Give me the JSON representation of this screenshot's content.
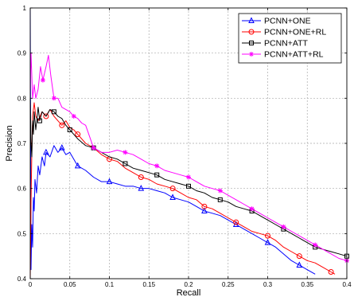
{
  "chart_data": {
    "type": "line",
    "title": "",
    "xlabel": "Recall",
    "ylabel": "Precision",
    "xlim": [
      0,
      0.4
    ],
    "ylim": [
      0.4,
      1
    ],
    "grid": true,
    "legend_position": "top-right",
    "xticks": [
      "0",
      "0.05",
      "0.1",
      "0.15",
      "0.2",
      "0.25",
      "0.3",
      "0.35",
      "0.4"
    ],
    "yticks": [
      "0.4",
      "0.5",
      "0.6",
      "0.7",
      "0.8",
      "0.9",
      "1"
    ],
    "series": [
      {
        "name": "PCNN+ONE",
        "color": "#0000ff",
        "marker": "triangle",
        "points": [
          [
            0.0,
            1.0
          ],
          [
            0.001,
            0.42
          ],
          [
            0.002,
            0.52
          ],
          [
            0.003,
            0.47
          ],
          [
            0.004,
            0.58
          ],
          [
            0.005,
            0.55
          ],
          [
            0.006,
            0.62
          ],
          [
            0.008,
            0.59
          ],
          [
            0.01,
            0.65
          ],
          [
            0.012,
            0.63
          ],
          [
            0.015,
            0.67
          ],
          [
            0.018,
            0.65
          ],
          [
            0.02,
            0.68
          ],
          [
            0.025,
            0.67
          ],
          [
            0.03,
            0.695
          ],
          [
            0.035,
            0.68
          ],
          [
            0.04,
            0.69
          ],
          [
            0.045,
            0.675
          ],
          [
            0.05,
            0.68
          ],
          [
            0.055,
            0.665
          ],
          [
            0.06,
            0.65
          ],
          [
            0.07,
            0.64
          ],
          [
            0.08,
            0.625
          ],
          [
            0.09,
            0.615
          ],
          [
            0.1,
            0.615
          ],
          [
            0.11,
            0.61
          ],
          [
            0.12,
            0.605
          ],
          [
            0.13,
            0.605
          ],
          [
            0.14,
            0.6
          ],
          [
            0.15,
            0.6
          ],
          [
            0.16,
            0.595
          ],
          [
            0.17,
            0.59
          ],
          [
            0.18,
            0.58
          ],
          [
            0.19,
            0.575
          ],
          [
            0.2,
            0.57
          ],
          [
            0.21,
            0.56
          ],
          [
            0.22,
            0.55
          ],
          [
            0.23,
            0.545
          ],
          [
            0.24,
            0.54
          ],
          [
            0.25,
            0.53
          ],
          [
            0.26,
            0.52
          ],
          [
            0.27,
            0.51
          ],
          [
            0.28,
            0.5
          ],
          [
            0.29,
            0.49
          ],
          [
            0.3,
            0.48
          ],
          [
            0.31,
            0.47
          ],
          [
            0.32,
            0.455
          ],
          [
            0.33,
            0.44
          ],
          [
            0.34,
            0.43
          ],
          [
            0.35,
            0.42
          ],
          [
            0.36,
            0.41
          ]
        ]
      },
      {
        "name": "PCNN+ONE+RL",
        "color": "#ff0000",
        "marker": "circle",
        "points": [
          [
            0.0,
            0.4
          ],
          [
            0.001,
            0.57
          ],
          [
            0.002,
            0.68
          ],
          [
            0.003,
            0.76
          ],
          [
            0.005,
            0.79
          ],
          [
            0.007,
            0.76
          ],
          [
            0.01,
            0.75
          ],
          [
            0.015,
            0.77
          ],
          [
            0.02,
            0.76
          ],
          [
            0.025,
            0.775
          ],
          [
            0.03,
            0.76
          ],
          [
            0.035,
            0.75
          ],
          [
            0.04,
            0.74
          ],
          [
            0.045,
            0.75
          ],
          [
            0.05,
            0.735
          ],
          [
            0.055,
            0.73
          ],
          [
            0.06,
            0.72
          ],
          [
            0.07,
            0.7
          ],
          [
            0.08,
            0.69
          ],
          [
            0.09,
            0.675
          ],
          [
            0.1,
            0.665
          ],
          [
            0.11,
            0.66
          ],
          [
            0.12,
            0.645
          ],
          [
            0.13,
            0.635
          ],
          [
            0.14,
            0.625
          ],
          [
            0.15,
            0.62
          ],
          [
            0.16,
            0.61
          ],
          [
            0.17,
            0.605
          ],
          [
            0.18,
            0.6
          ],
          [
            0.19,
            0.59
          ],
          [
            0.2,
            0.58
          ],
          [
            0.21,
            0.575
          ],
          [
            0.22,
            0.56
          ],
          [
            0.23,
            0.555
          ],
          [
            0.24,
            0.545
          ],
          [
            0.25,
            0.535
          ],
          [
            0.26,
            0.525
          ],
          [
            0.27,
            0.515
          ],
          [
            0.28,
            0.505
          ],
          [
            0.29,
            0.5
          ],
          [
            0.3,
            0.495
          ],
          [
            0.31,
            0.485
          ],
          [
            0.32,
            0.47
          ],
          [
            0.33,
            0.46
          ],
          [
            0.34,
            0.45
          ],
          [
            0.35,
            0.44
          ],
          [
            0.36,
            0.435
          ],
          [
            0.37,
            0.425
          ],
          [
            0.38,
            0.415
          ],
          [
            0.385,
            0.41
          ]
        ]
      },
      {
        "name": "PCNN+ATT",
        "color": "#000000",
        "marker": "square",
        "points": [
          [
            0.0,
            0.8
          ],
          [
            0.001,
            0.7
          ],
          [
            0.002,
            0.67
          ],
          [
            0.003,
            0.75
          ],
          [
            0.004,
            0.72
          ],
          [
            0.005,
            0.77
          ],
          [
            0.007,
            0.73
          ],
          [
            0.01,
            0.78
          ],
          [
            0.012,
            0.75
          ],
          [
            0.015,
            0.77
          ],
          [
            0.02,
            0.76
          ],
          [
            0.025,
            0.775
          ],
          [
            0.03,
            0.77
          ],
          [
            0.035,
            0.76
          ],
          [
            0.04,
            0.755
          ],
          [
            0.045,
            0.74
          ],
          [
            0.05,
            0.73
          ],
          [
            0.055,
            0.72
          ],
          [
            0.06,
            0.71
          ],
          [
            0.07,
            0.695
          ],
          [
            0.08,
            0.69
          ],
          [
            0.09,
            0.68
          ],
          [
            0.1,
            0.67
          ],
          [
            0.11,
            0.665
          ],
          [
            0.12,
            0.655
          ],
          [
            0.13,
            0.645
          ],
          [
            0.14,
            0.64
          ],
          [
            0.15,
            0.635
          ],
          [
            0.16,
            0.63
          ],
          [
            0.17,
            0.62
          ],
          [
            0.18,
            0.615
          ],
          [
            0.19,
            0.61
          ],
          [
            0.2,
            0.605
          ],
          [
            0.21,
            0.595
          ],
          [
            0.22,
            0.59
          ],
          [
            0.23,
            0.58
          ],
          [
            0.24,
            0.575
          ],
          [
            0.25,
            0.57
          ],
          [
            0.26,
            0.56
          ],
          [
            0.27,
            0.555
          ],
          [
            0.28,
            0.55
          ],
          [
            0.29,
            0.54
          ],
          [
            0.3,
            0.53
          ],
          [
            0.31,
            0.52
          ],
          [
            0.32,
            0.51
          ],
          [
            0.33,
            0.5
          ],
          [
            0.34,
            0.49
          ],
          [
            0.35,
            0.48
          ],
          [
            0.36,
            0.47
          ],
          [
            0.37,
            0.465
          ],
          [
            0.38,
            0.46
          ],
          [
            0.39,
            0.455
          ],
          [
            0.4,
            0.45
          ]
        ]
      },
      {
        "name": "PCNN+ATT+RL",
        "color": "#ff00ff",
        "marker": "asterisk",
        "points": [
          [
            0.0,
            0.82
          ],
          [
            0.001,
            0.9
          ],
          [
            0.002,
            0.85
          ],
          [
            0.003,
            0.8
          ],
          [
            0.005,
            0.83
          ],
          [
            0.007,
            0.8
          ],
          [
            0.01,
            0.82
          ],
          [
            0.013,
            0.87
          ],
          [
            0.016,
            0.84
          ],
          [
            0.02,
            0.87
          ],
          [
            0.023,
            0.895
          ],
          [
            0.026,
            0.85
          ],
          [
            0.03,
            0.8
          ],
          [
            0.035,
            0.8
          ],
          [
            0.04,
            0.78
          ],
          [
            0.05,
            0.77
          ],
          [
            0.055,
            0.76
          ],
          [
            0.06,
            0.755
          ],
          [
            0.065,
            0.745
          ],
          [
            0.07,
            0.74
          ],
          [
            0.08,
            0.69
          ],
          [
            0.09,
            0.68
          ],
          [
            0.1,
            0.68
          ],
          [
            0.11,
            0.685
          ],
          [
            0.12,
            0.68
          ],
          [
            0.13,
            0.675
          ],
          [
            0.14,
            0.665
          ],
          [
            0.15,
            0.655
          ],
          [
            0.16,
            0.65
          ],
          [
            0.17,
            0.64
          ],
          [
            0.18,
            0.635
          ],
          [
            0.19,
            0.63
          ],
          [
            0.2,
            0.625
          ],
          [
            0.21,
            0.615
          ],
          [
            0.22,
            0.605
          ],
          [
            0.23,
            0.6
          ],
          [
            0.24,
            0.595
          ],
          [
            0.25,
            0.585
          ],
          [
            0.26,
            0.575
          ],
          [
            0.27,
            0.565
          ],
          [
            0.28,
            0.555
          ],
          [
            0.29,
            0.545
          ],
          [
            0.3,
            0.535
          ],
          [
            0.31,
            0.525
          ],
          [
            0.32,
            0.515
          ],
          [
            0.33,
            0.505
          ],
          [
            0.34,
            0.495
          ],
          [
            0.35,
            0.485
          ],
          [
            0.36,
            0.475
          ],
          [
            0.37,
            0.465
          ],
          [
            0.38,
            0.455
          ],
          [
            0.39,
            0.445
          ],
          [
            0.4,
            0.44
          ]
        ]
      }
    ]
  }
}
